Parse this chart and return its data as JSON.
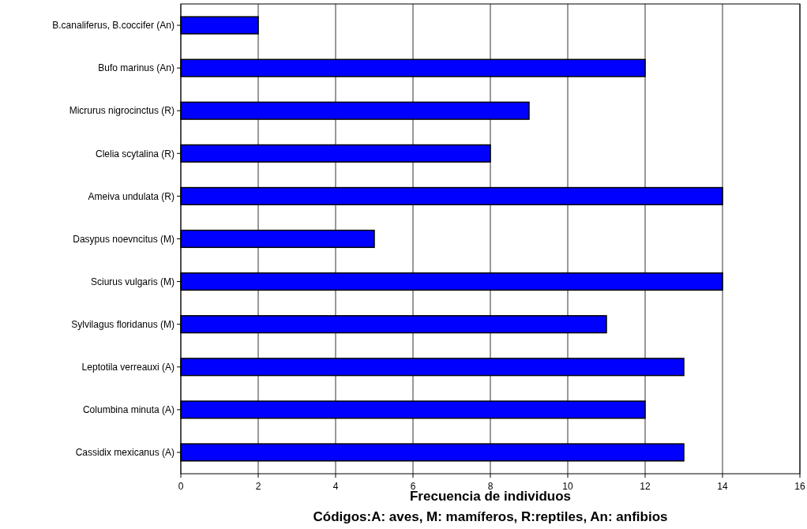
{
  "chart_data": {
    "type": "bar",
    "orientation": "horizontal",
    "categories": [
      "B.canaliferus, B.coccifer (An)",
      "Bufo marinus (An)",
      "Micrurus nigrocinctus (R)",
      "Clelia scytalina (R)",
      "Ameiva undulata (R)",
      "Dasypus noevncitus (M)",
      "Sciurus vulgaris (M)",
      "Sylvilagus floridanus (M)",
      "Leptotila verreauxi (A)",
      "Columbina minuta (A)",
      "Cassidix mexicanus (A)"
    ],
    "values": [
      2,
      12,
      9,
      8,
      14,
      5,
      14,
      11,
      13,
      12,
      13
    ],
    "color": "#0000ff",
    "xlim": [
      0,
      16
    ],
    "xticks": [
      0,
      2,
      4,
      6,
      8,
      10,
      12,
      14,
      16
    ],
    "grid": "x",
    "xlabel": "Frecuencia de individuos",
    "annotations": [
      "Códigos:A: aves, M: mamíferos, R:reptiles, An: anfibios"
    ]
  }
}
